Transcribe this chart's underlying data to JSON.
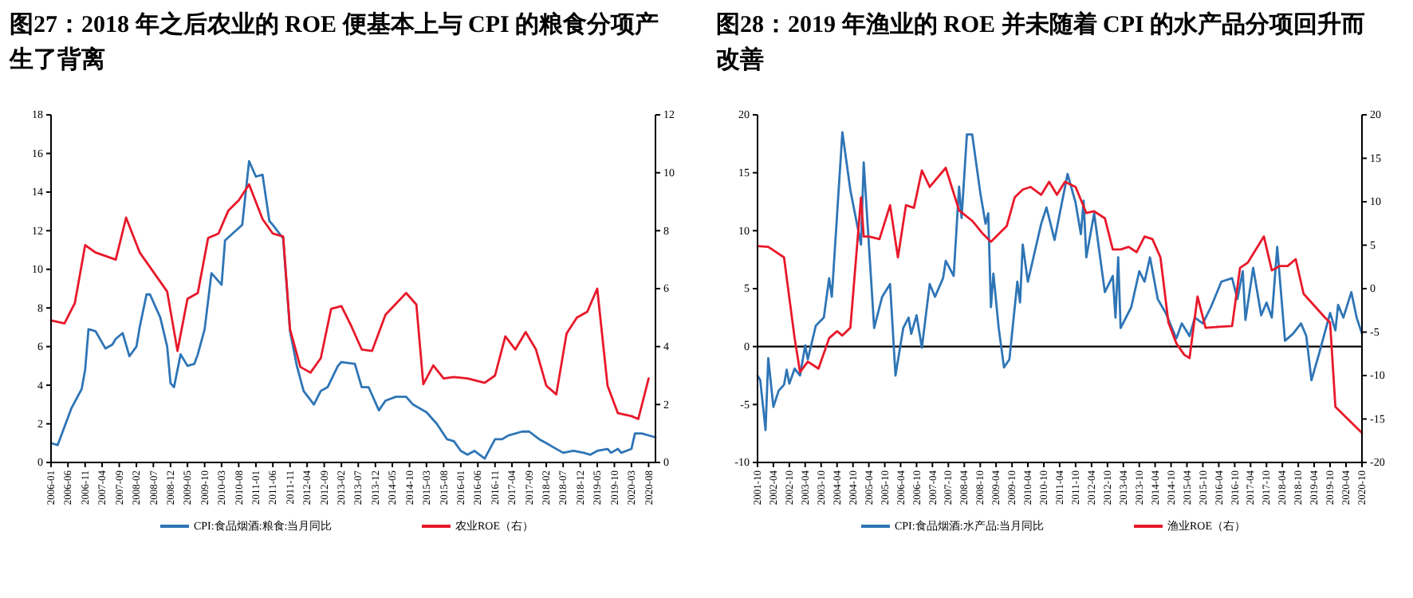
{
  "chart_data": [
    {
      "type": "line",
      "title": "图27：2018 年之后农业的 ROE 便基本上与 CPI 的粮食分项产生了背离",
      "legend": "bottom",
      "xlim": [
        "2006-01",
        "2020-10"
      ],
      "xticks": [
        "2006-01",
        "2006-06",
        "2006-11",
        "2007-04",
        "2007-09",
        "2008-02",
        "2008-07",
        "2008-12",
        "2009-05",
        "2009-10",
        "2010-03",
        "2010-08",
        "2011-01",
        "2011-06",
        "2011-11",
        "2012-04",
        "2012-09",
        "2013-02",
        "2013-07",
        "2013-12",
        "2014-05",
        "2014-10",
        "2015-03",
        "2015-08",
        "2016-01",
        "2016-06",
        "2016-11",
        "2017-04",
        "2017-09",
        "2018-02",
        "2018-07",
        "2018-12",
        "2019-05",
        "2019-10",
        "2020-03",
        "2020-08"
      ],
      "ylim": [
        0,
        18
      ],
      "yticks": [
        0,
        2,
        4,
        6,
        8,
        10,
        12,
        14,
        16,
        18
      ],
      "y2lim": [
        0,
        12
      ],
      "y2ticks": [
        0,
        2,
        4,
        6,
        8,
        10,
        12
      ],
      "series": [
        {
          "name": "CPI:食品烟酒:粮食:当月同比",
          "color": "#2e75b6",
          "x": [
            "2006-01",
            "2006-03",
            "2006-07",
            "2006-10",
            "2006-11",
            "2006-12",
            "2007-02",
            "2007-05",
            "2007-07",
            "2007-08",
            "2007-10",
            "2007-12",
            "2008-02",
            "2008-03",
            "2008-05",
            "2008-06",
            "2008-09",
            "2008-11",
            "2008-12",
            "2009-01",
            "2009-03",
            "2009-05",
            "2009-07",
            "2009-08",
            "2009-10",
            "2009-12",
            "2010-03",
            "2010-04",
            "2010-09",
            "2010-11",
            "2011-01",
            "2011-03",
            "2011-05",
            "2011-06",
            "2011-09",
            "2011-11",
            "2012-01",
            "2012-03",
            "2012-06",
            "2012-08",
            "2012-10",
            "2013-01",
            "2013-02",
            "2013-06",
            "2013-08",
            "2013-10",
            "2014-01",
            "2014-03",
            "2014-06",
            "2014-09",
            "2014-11",
            "2015-03",
            "2015-06",
            "2015-09",
            "2015-11",
            "2016-01",
            "2016-03",
            "2016-05",
            "2016-08",
            "2016-11",
            "2017-01",
            "2017-03",
            "2017-07",
            "2017-09",
            "2017-12",
            "2018-02",
            "2018-04",
            "2018-07",
            "2018-10",
            "2019-01",
            "2019-03",
            "2019-05",
            "2019-08",
            "2019-09",
            "2019-11",
            "2019-12",
            "2020-03",
            "2020-04",
            "2020-06",
            "2020-10"
          ],
          "values": [
            1.0,
            0.9,
            2.8,
            3.8,
            4.8,
            6.9,
            6.8,
            5.9,
            6.1,
            6.4,
            6.7,
            5.5,
            6.0,
            7.0,
            8.7,
            8.7,
            7.5,
            6.0,
            4.1,
            3.9,
            5.6,
            5.0,
            5.1,
            5.6,
            6.9,
            9.8,
            9.2,
            11.5,
            12.3,
            15.6,
            14.8,
            14.9,
            12.5,
            12.3,
            11.6,
            6.8,
            5.0,
            3.7,
            3.0,
            3.7,
            3.9,
            5.0,
            5.2,
            5.1,
            3.9,
            3.9,
            2.7,
            3.2,
            3.4,
            3.4,
            3.0,
            2.6,
            2.0,
            1.2,
            1.1,
            0.6,
            0.4,
            0.6,
            0.2,
            1.2,
            1.2,
            1.4,
            1.6,
            1.6,
            1.2,
            1.0,
            0.8,
            0.5,
            0.6,
            0.5,
            0.4,
            0.6,
            0.7,
            0.5,
            0.7,
            0.5,
            0.7,
            1.5,
            1.5,
            1.3
          ]
        },
        {
          "name": "农业ROE（右）",
          "color": "#e8182a",
          "axis": "y2",
          "x": [
            "2006-01",
            "2006-05",
            "2006-08",
            "2006-11",
            "2007-02",
            "2007-08",
            "2007-11",
            "2008-03",
            "2008-11",
            "2009-02",
            "2009-05",
            "2009-08",
            "2009-11",
            "2010-02",
            "2010-05",
            "2010-08",
            "2010-11",
            "2011-03",
            "2011-06",
            "2011-09",
            "2011-11",
            "2012-02",
            "2012-05",
            "2012-08",
            "2012-11",
            "2013-02",
            "2013-05",
            "2013-08",
            "2013-11",
            "2014-03",
            "2014-09",
            "2014-12",
            "2015-02",
            "2015-05",
            "2015-08",
            "2015-11",
            "2016-03",
            "2016-08",
            "2016-11",
            "2017-02",
            "2017-05",
            "2017-08",
            "2017-11",
            "2018-02",
            "2018-05",
            "2018-08",
            "2018-11",
            "2019-02",
            "2019-05",
            "2019-08",
            "2019-11",
            "2020-03",
            "2020-05",
            "2020-08"
          ],
          "values": [
            4.9,
            4.8,
            5.5,
            7.5,
            7.25,
            7.0,
            8.45,
            7.25,
            5.9,
            3.85,
            5.65,
            5.85,
            7.75,
            7.9,
            8.7,
            9.05,
            9.6,
            8.4,
            7.9,
            7.8,
            4.6,
            3.3,
            3.1,
            3.6,
            5.3,
            5.4,
            4.7,
            3.9,
            3.85,
            5.1,
            5.85,
            5.45,
            2.7,
            3.35,
            2.9,
            2.95,
            2.9,
            2.75,
            3.0,
            4.35,
            3.9,
            4.5,
            3.9,
            2.65,
            2.35,
            4.45,
            5.0,
            5.2,
            6.0,
            2.65,
            1.7,
            1.6,
            1.5,
            2.9
          ]
        }
      ]
    },
    {
      "type": "line",
      "title": "图28：2019 年渔业的 ROE 并未随着 CPI 的水产品分项回升而改善",
      "legend": "bottom",
      "xlim": [
        "2001-10",
        "2020-10"
      ],
      "xticks": [
        "2001-10",
        "2002-04",
        "2002-10",
        "2003-04",
        "2003-10",
        "2004-04",
        "2004-10",
        "2005-04",
        "2005-10",
        "2006-04",
        "2006-10",
        "2007-04",
        "2007-10",
        "2008-04",
        "2008-10",
        "2009-04",
        "2009-10",
        "2010-04",
        "2010-10",
        "2011-04",
        "2011-10",
        "2012-04",
        "2012-10",
        "2013-04",
        "2013-10",
        "2014-04",
        "2014-10",
        "2015-04",
        "2015-10",
        "2016-04",
        "2016-10",
        "2017-04",
        "2017-10",
        "2018-04",
        "2018-10",
        "2019-04",
        "2019-10",
        "2020-04",
        "2020-10"
      ],
      "ylim": [
        -10,
        20
      ],
      "yticks": [
        -10,
        -5,
        0,
        5,
        10,
        15,
        20
      ],
      "y2lim": [
        -20,
        20
      ],
      "y2ticks": [
        -20,
        -15,
        -10,
        -5,
        0,
        5,
        10,
        15,
        20
      ],
      "ref_lines": [
        {
          "axis": "y",
          "value": 0,
          "color": "#000000"
        }
      ],
      "series": [
        {
          "name": "CPI:食品烟酒:水产品:当月同比",
          "color": "#2e75b6",
          "x": [
            "2001-10",
            "2001-11",
            "2002-01",
            "2002-02",
            "2002-04",
            "2002-06",
            "2002-08",
            "2002-09",
            "2002-10",
            "2002-12",
            "2003-02",
            "2003-04",
            "2003-05",
            "2003-08",
            "2003-11",
            "2004-01",
            "2004-02",
            "2004-06",
            "2004-09",
            "2005-01",
            "2005-02",
            "2005-06",
            "2005-09",
            "2005-12",
            "2006-02",
            "2006-05",
            "2006-07",
            "2006-08",
            "2006-10",
            "2006-12",
            "2007-03",
            "2007-05",
            "2007-08",
            "2007-09",
            "2007-12",
            "2008-02",
            "2008-03",
            "2008-05",
            "2008-07",
            "2008-10",
            "2008-12",
            "2009-01",
            "2009-02",
            "2009-03",
            "2009-05",
            "2009-07",
            "2009-09",
            "2009-12",
            "2010-01",
            "2010-02",
            "2010-04",
            "2010-09",
            "2010-11",
            "2011-02",
            "2011-07",
            "2011-10",
            "2011-12",
            "2012-01",
            "2012-02",
            "2012-05",
            "2012-09",
            "2012-12",
            "2013-01",
            "2013-02",
            "2013-03",
            "2013-07",
            "2013-10",
            "2013-12",
            "2014-02",
            "2014-05",
            "2014-08",
            "2014-12",
            "2015-02",
            "2015-05",
            "2015-07",
            "2015-10",
            "2016-01",
            "2016-05",
            "2016-09",
            "2016-11",
            "2017-01",
            "2017-02",
            "2017-05",
            "2017-08",
            "2017-10",
            "2017-12",
            "2018-02",
            "2018-05",
            "2018-08",
            "2018-11",
            "2019-01",
            "2019-03",
            "2019-06",
            "2019-10",
            "2019-12",
            "2020-01",
            "2020-03",
            "2020-06",
            "2020-08",
            "2020-10"
          ],
          "values": [
            -2.5,
            -2.9,
            -7.2,
            -1.0,
            -5.2,
            -3.8,
            -3.3,
            -2.0,
            -3.2,
            -1.9,
            -2.5,
            0.1,
            -1.1,
            1.8,
            2.5,
            5.9,
            4.3,
            18.5,
            13.5,
            8.8,
            15.9,
            1.6,
            4.3,
            5.4,
            -2.5,
            1.6,
            2.5,
            1.1,
            2.7,
            -0.1,
            5.4,
            4.3,
            5.9,
            7.4,
            6.1,
            13.8,
            11.1,
            18.3,
            18.3,
            13.3,
            10.6,
            11.5,
            3.4,
            6.3,
            1.6,
            -1.8,
            -1.1,
            5.6,
            3.8,
            8.8,
            5.6,
            10.6,
            12.0,
            9.2,
            14.9,
            12.4,
            9.7,
            12.6,
            7.7,
            11.5,
            4.7,
            6.1,
            2.5,
            7.7,
            1.6,
            3.4,
            6.5,
            5.6,
            7.7,
            4.1,
            2.9,
            0.7,
            2.0,
            0.9,
            2.5,
            2.0,
            3.4,
            5.6,
            5.9,
            4.1,
            6.5,
            2.3,
            6.8,
            2.7,
            3.8,
            2.5,
            8.6,
            0.5,
            1.1,
            2.0,
            0.9,
            -2.9,
            -0.5,
            2.9,
            1.4,
            3.6,
            2.5,
            4.7,
            2.5,
            1.1
          ]
        },
        {
          "name": "渔业ROE（右）",
          "color": "#e8182a",
          "axis": "y2",
          "x": [
            "2001-10",
            "2002-02",
            "2002-08",
            "2002-12",
            "2003-02",
            "2003-05",
            "2003-09",
            "2004-01",
            "2004-04",
            "2004-06",
            "2004-09",
            "2005-01",
            "2005-02",
            "2005-04",
            "2005-08",
            "2005-12",
            "2006-03",
            "2006-06",
            "2006-09",
            "2006-12",
            "2007-03",
            "2007-09",
            "2008-02",
            "2008-07",
            "2008-11",
            "2009-02",
            "2009-08",
            "2009-11",
            "2010-02",
            "2010-05",
            "2010-09",
            "2010-12",
            "2011-03",
            "2011-06",
            "2011-10",
            "2012-02",
            "2012-05",
            "2012-09",
            "2012-12",
            "2013-03",
            "2013-06",
            "2013-09",
            "2013-12",
            "2014-03",
            "2014-06",
            "2014-09",
            "2014-12",
            "2015-03",
            "2015-05",
            "2015-08",
            "2015-11",
            "2016-04",
            "2016-09",
            "2016-12",
            "2017-03",
            "2017-09",
            "2017-12",
            "2018-03",
            "2018-06",
            "2018-09",
            "2018-12",
            "2019-08",
            "2019-10",
            "2019-12",
            "2020-10"
          ],
          "values": [
            4.9,
            4.8,
            3.6,
            -5.7,
            -9.6,
            -8.4,
            -9.2,
            -5.7,
            -4.9,
            -5.4,
            -4.5,
            10.5,
            6.0,
            6.0,
            5.7,
            9.6,
            3.6,
            9.6,
            9.3,
            13.6,
            11.7,
            13.9,
            9.0,
            7.8,
            6.3,
            5.4,
            7.2,
            10.5,
            11.4,
            11.7,
            10.8,
            12.3,
            10.8,
            12.3,
            11.7,
            8.7,
            8.9,
            8.1,
            4.5,
            4.5,
            4.8,
            4.2,
            6.0,
            5.7,
            3.6,
            -3.9,
            -6.3,
            -7.6,
            -8.0,
            -0.9,
            -4.5,
            -4.4,
            -4.3,
            2.4,
            3.0,
            6.0,
            2.1,
            2.6,
            2.6,
            3.4,
            -0.6,
            -3.3,
            -3.9,
            -13.6,
            -16.6
          ]
        }
      ]
    }
  ]
}
